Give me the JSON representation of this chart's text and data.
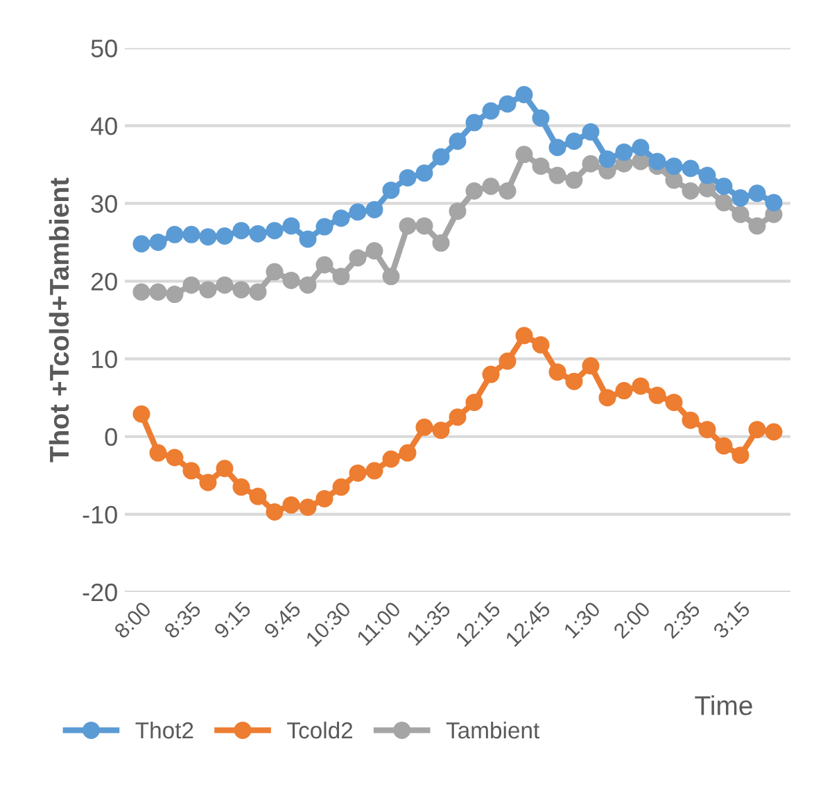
{
  "chart_data": {
    "type": "line",
    "xlabel": "Time",
    "ylabel": "Thot +Tcold+Tambient",
    "categories": [
      "8:00",
      null,
      null,
      "8:35",
      null,
      null,
      "9:15",
      null,
      null,
      "9:45",
      null,
      null,
      "10:30",
      null,
      null,
      "11:00",
      null,
      null,
      "11:35",
      null,
      null,
      "12:15",
      null,
      null,
      "12:45",
      null,
      null,
      "1:30",
      null,
      null,
      "2:00",
      null,
      null,
      "2:35",
      null,
      null,
      "3:15",
      null,
      null
    ],
    "series": [
      {
        "name": "Thot2",
        "color": "#5b9bd5",
        "values": [
          24.8,
          25,
          26,
          26,
          25.7,
          25.8,
          26.5,
          26.1,
          26.5,
          27.1,
          25.4,
          27,
          28.1,
          28.9,
          29.2,
          31.7,
          33.3,
          33.9,
          36,
          38,
          40.4,
          41.9,
          42.8,
          44,
          41,
          37.2,
          38,
          39.2,
          35.7,
          36.6,
          37.2,
          35.4,
          34.8,
          34.5,
          33.6,
          32.2,
          30.7,
          31.3,
          30.1
        ]
      },
      {
        "name": "Tcold2",
        "color": "#ed7d31",
        "values": [
          2.9,
          -2.1,
          -2.7,
          -4.4,
          -5.9,
          -4.1,
          -6.5,
          -7.7,
          -9.7,
          -8.8,
          -9.1,
          -8,
          -6.5,
          -4.7,
          -4.4,
          -2.9,
          -2.1,
          1.2,
          0.8,
          2.5,
          4.4,
          8,
          9.7,
          13,
          11.8,
          8.3,
          7.1,
          9.1,
          5,
          5.9,
          6.5,
          5.3,
          4.4,
          2.1,
          0.9,
          -1.2,
          -2.4,
          0.9,
          0.6
        ]
      },
      {
        "name": "Tambient",
        "color": "#a5a5a5",
        "values": [
          18.6,
          18.6,
          18.3,
          19.5,
          18.9,
          19.5,
          18.9,
          18.6,
          21.2,
          20.1,
          19.5,
          22.1,
          20.6,
          23,
          23.9,
          20.6,
          27.1,
          27.1,
          24.9,
          29,
          31.6,
          32.2,
          31.6,
          36.3,
          34.8,
          33.6,
          33,
          35.1,
          34.2,
          35.1,
          35.4,
          34.8,
          33,
          31.6,
          31.9,
          30.1,
          28.6,
          27.1,
          28.6
        ]
      }
    ],
    "ylim": [
      -20,
      50
    ],
    "yticks": [
      -20,
      -10,
      0,
      10,
      20,
      30,
      40,
      50
    ],
    "grid": "y",
    "legend": "bottom",
    "marker": "circle",
    "line_style": "solid"
  }
}
